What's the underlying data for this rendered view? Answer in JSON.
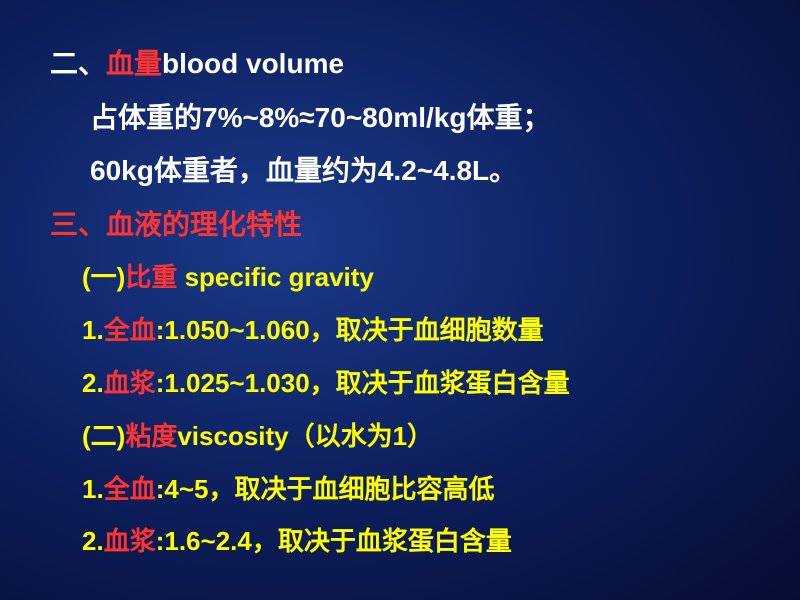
{
  "line1": {
    "t1": "二、",
    "t2": "血量",
    "t3": "blood volume"
  },
  "line2": {
    "t1": "占体重的",
    "t2": "7%~8%≈70~80ml/kg",
    "t3": "体重；"
  },
  "line3": {
    "t1": "60kg",
    "t2": "体重者，血量约为",
    "t3": "4.2~4.8L",
    "t4": "。"
  },
  "line4": {
    "t1": "三、血液的理化特性"
  },
  "line5": {
    "t1": "(一)",
    "t2": "比重",
    "t3": " specific gravity"
  },
  "line6": {
    "t1": "1.",
    "t2": "全血",
    "t3": ":1.050~1.060",
    "t4": "，取决于血细胞数量"
  },
  "line7": {
    "t1": "2.",
    "t2": "血浆",
    "t3": ":1.025~1.030",
    "t4": "，取决于血浆蛋白含量"
  },
  "line8": {
    "t1": "(二)",
    "t2": "粘度",
    "t3": "viscosity",
    "t4": "（以水为",
    "t5": "1",
    "t6": "）"
  },
  "line9": {
    "t1": "1.",
    "t2": "全血",
    "t3": ":4~5",
    "t4": "，取决于血细胞比容高低"
  },
  "line10": {
    "t1": "2.",
    "t2": "血浆",
    "t3": ":1.6~2.4",
    "t4": "，取决于血浆蛋白含量"
  }
}
